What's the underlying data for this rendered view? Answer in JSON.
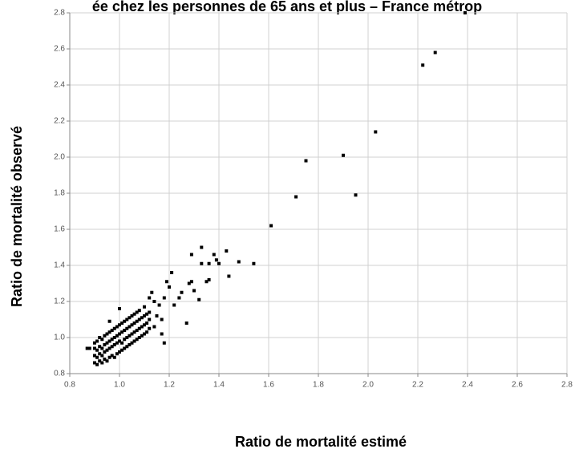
{
  "chart_data": {
    "type": "scatter",
    "title": "ée chez les personnes de 65 ans et plus – France métrop",
    "x_label": "Ratio de mortalité estimé",
    "y_label": "Ratio de mortalité observé",
    "color": "#000000",
    "grid": true,
    "xlim": [
      0.8,
      2.8
    ],
    "ylim": [
      0.8,
      2.8
    ],
    "xticks": [
      0.8,
      {
        "value": 1.0,
        "label": "1.0"
      },
      1.2,
      1.4,
      1.6,
      1.8,
      {
        "value": 2.0,
        "label": "2.0"
      },
      2.2,
      2.4,
      2.6,
      2.8
    ],
    "yticks": [
      0.8,
      {
        "value": 1.0,
        "label": "1.0"
      },
      1.2,
      1.4,
      1.6,
      1.8,
      {
        "value": 2.0,
        "label": "2.0"
      },
      2.2,
      2.4,
      2.6,
      2.8
    ],
    "points": [
      [
        2.39,
        2.8
      ],
      [
        2.27,
        2.58
      ],
      [
        2.22,
        2.51
      ],
      [
        2.03,
        2.14
      ],
      [
        1.9,
        2.01
      ],
      [
        1.75,
        1.98
      ],
      [
        1.71,
        1.78
      ],
      [
        1.95,
        1.79
      ],
      [
        1.61,
        1.62
      ],
      [
        1.33,
        1.5
      ],
      [
        1.43,
        1.48
      ],
      [
        1.29,
        1.46
      ],
      [
        1.38,
        1.46
      ],
      [
        1.39,
        1.43
      ],
      [
        1.48,
        1.42
      ],
      [
        1.54,
        1.41
      ],
      [
        1.36,
        1.41
      ],
      [
        1.4,
        1.41
      ],
      [
        1.33,
        1.41
      ],
      [
        1.44,
        1.34
      ],
      [
        1.36,
        1.32
      ],
      [
        1.35,
        1.31
      ],
      [
        1.29,
        1.31
      ],
      [
        1.28,
        1.3
      ],
      [
        1.3,
        1.26
      ],
      [
        1.32,
        1.21
      ],
      [
        1.25,
        1.25
      ],
      [
        1.21,
        1.36
      ],
      [
        1.24,
        1.22
      ],
      [
        1.27,
        1.08
      ],
      [
        1.18,
        1.22
      ],
      [
        1.19,
        1.31
      ],
      [
        1.2,
        1.28
      ],
      [
        1.18,
        0.97
      ],
      [
        1.17,
        1.02
      ],
      [
        0.88,
        0.94
      ],
      [
        0.87,
        0.94
      ],
      [
        1.14,
        1.2
      ],
      [
        1.15,
        1.12
      ],
      [
        1.16,
        1.18
      ],
      [
        1.13,
        1.25
      ],
      [
        1.22,
        1.18
      ],
      [
        1.1,
        1.17
      ],
      [
        1.17,
        1.1
      ],
      [
        1.12,
        1.22
      ],
      [
        1.0,
        1.16
      ],
      [
        0.96,
        1.09
      ],
      [
        1.14,
        1.06
      ],
      [
        0.9,
        0.86
      ],
      [
        0.9,
        0.9
      ],
      [
        0.9,
        0.94
      ],
      [
        0.9,
        0.97
      ],
      [
        0.91,
        0.85
      ],
      [
        0.91,
        0.89
      ],
      [
        0.91,
        0.93
      ],
      [
        0.91,
        0.98
      ],
      [
        0.92,
        0.87
      ],
      [
        0.92,
        0.91
      ],
      [
        0.92,
        0.95
      ],
      [
        0.92,
        1.0
      ],
      [
        0.93,
        0.86
      ],
      [
        0.93,
        0.9
      ],
      [
        0.93,
        0.94
      ],
      [
        0.93,
        0.99
      ],
      [
        0.94,
        0.88
      ],
      [
        0.94,
        0.92
      ],
      [
        0.94,
        0.96
      ],
      [
        0.94,
        1.01
      ],
      [
        0.95,
        0.87
      ],
      [
        0.95,
        0.93
      ],
      [
        0.95,
        0.97
      ],
      [
        0.95,
        1.02
      ],
      [
        0.96,
        0.89
      ],
      [
        0.96,
        0.94
      ],
      [
        0.96,
        0.98
      ],
      [
        0.96,
        1.03
      ],
      [
        0.97,
        0.9
      ],
      [
        0.97,
        0.95
      ],
      [
        0.97,
        0.99
      ],
      [
        0.97,
        1.04
      ],
      [
        0.98,
        0.89
      ],
      [
        0.98,
        0.96
      ],
      [
        0.98,
        1.0
      ],
      [
        0.98,
        1.05
      ],
      [
        0.99,
        0.91
      ],
      [
        0.99,
        0.97
      ],
      [
        0.99,
        1.01
      ],
      [
        0.99,
        1.06
      ],
      [
        1.0,
        0.92
      ],
      [
        1.0,
        0.98
      ],
      [
        1.0,
        1.02
      ],
      [
        1.0,
        1.07
      ],
      [
        1.01,
        0.93
      ],
      [
        1.01,
        0.97
      ],
      [
        1.01,
        1.03
      ],
      [
        1.01,
        1.08
      ],
      [
        1.02,
        0.94
      ],
      [
        1.02,
        0.99
      ],
      [
        1.02,
        1.04
      ],
      [
        1.02,
        1.09
      ],
      [
        1.03,
        0.95
      ],
      [
        1.03,
        1.0
      ],
      [
        1.03,
        1.05
      ],
      [
        1.03,
        1.1
      ],
      [
        1.04,
        0.96
      ],
      [
        1.04,
        1.01
      ],
      [
        1.04,
        1.06
      ],
      [
        1.04,
        1.11
      ],
      [
        1.05,
        0.97
      ],
      [
        1.05,
        1.02
      ],
      [
        1.05,
        1.07
      ],
      [
        1.05,
        1.12
      ],
      [
        1.06,
        0.98
      ],
      [
        1.06,
        1.03
      ],
      [
        1.06,
        1.08
      ],
      [
        1.06,
        1.13
      ],
      [
        1.07,
        0.99
      ],
      [
        1.07,
        1.04
      ],
      [
        1.07,
        1.09
      ],
      [
        1.07,
        1.14
      ],
      [
        1.08,
        1.0
      ],
      [
        1.08,
        1.05
      ],
      [
        1.08,
        1.1
      ],
      [
        1.08,
        1.15
      ],
      [
        1.09,
        1.01
      ],
      [
        1.09,
        1.06
      ],
      [
        1.09,
        1.11
      ],
      [
        1.1,
        1.02
      ],
      [
        1.1,
        1.07
      ],
      [
        1.1,
        1.12
      ],
      [
        1.11,
        1.03
      ],
      [
        1.11,
        1.08
      ],
      [
        1.11,
        1.13
      ],
      [
        1.12,
        1.05
      ],
      [
        1.12,
        1.1
      ],
      [
        1.12,
        1.14
      ]
    ]
  }
}
